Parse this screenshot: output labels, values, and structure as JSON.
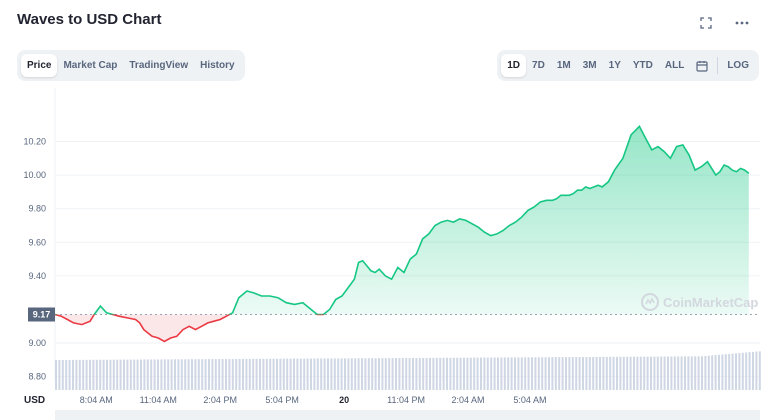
{
  "header": {
    "title": "Waves to USD Chart"
  },
  "icons": {
    "fullscreen": "fullscreen-icon",
    "more": "more-icon",
    "calendar": "calendar-icon",
    "watermark_logo": "coinmarketcap-logo-icon"
  },
  "view_tabs": [
    {
      "label": "Price",
      "active": true
    },
    {
      "label": "Market Cap",
      "active": false
    },
    {
      "label": "TradingView",
      "active": false
    },
    {
      "label": "History",
      "active": false
    }
  ],
  "range_tabs": [
    {
      "label": "1D",
      "active": true
    },
    {
      "label": "7D",
      "active": false
    },
    {
      "label": "1M",
      "active": false
    },
    {
      "label": "3M",
      "active": false
    },
    {
      "label": "1Y",
      "active": false
    },
    {
      "label": "YTD",
      "active": false
    },
    {
      "label": "ALL",
      "active": false
    }
  ],
  "log_label": "LOG",
  "watermark": "CoinMarketCap",
  "colors": {
    "up": "#16c784",
    "down": "#ea3943",
    "volume": "#cfd6e4",
    "grid": "#eff2f5",
    "reference_label_bg": "#58667e"
  },
  "chart_data": {
    "type": "area",
    "currency_label": "USD",
    "reference_price": 9.17,
    "reference_label": "9.17",
    "y_ticks": [
      "10.20",
      "10.00",
      "9.80",
      "9.60",
      "9.40",
      "9.00",
      "8.80"
    ],
    "x_ticks": [
      "8:04 AM",
      "11:04 AM",
      "2:04 PM",
      "5:04 PM",
      "20",
      "11:04 PM",
      "2:04 AM",
      "5:04 AM"
    ],
    "x_ticks_bold": [
      "20"
    ],
    "ylim": [
      8.78,
      10.34
    ],
    "grid": true,
    "x_hours": [
      0,
      0.3,
      0.6,
      0.9,
      1.3,
      1.7,
      1.9,
      2.2,
      2.5,
      2.8,
      3.1,
      3.5,
      3.9,
      4.1,
      4.3,
      4.5,
      4.7,
      5.0,
      5.3,
      5.6,
      5.9,
      6.2,
      6.5,
      6.8,
      7.1,
      7.4,
      7.7,
      8.0,
      8.3,
      8.6,
      8.9,
      9.3,
      9.6,
      10.0,
      10.4,
      10.8,
      11.2,
      11.6,
      12.0,
      12.4,
      12.7,
      13.0,
      13.3,
      13.6,
      13.9,
      14.2,
      14.5,
      14.7,
      14.9,
      15.1,
      15.3,
      15.5,
      15.7,
      16.0,
      16.3,
      16.6,
      16.9,
      17.2,
      17.5,
      17.8,
      18.1,
      18.4,
      18.7,
      19.0,
      19.3,
      19.6,
      19.9,
      20.2,
      20.5,
      20.8,
      21.1,
      21.4,
      21.7,
      22.0,
      22.3,
      22.6,
      22.9,
      23.2,
      23.5,
      23.8,
      24.1,
      24.3,
      24.5,
      24.7,
      24.9,
      25.1,
      25.3,
      25.5,
      25.7,
      25.9,
      26.1,
      26.3,
      26.5,
      26.8,
      27.1,
      27.5,
      27.9,
      28.3,
      28.6,
      28.9,
      29.2,
      29.5,
      29.8,
      30.1,
      30.4,
      30.7,
      31.0,
      31.3,
      31.6,
      31.8,
      32.0,
      32.2,
      32.4,
      32.6,
      32.8,
      33.0,
      33.2,
      33.4,
      33.6
    ],
    "prices": [
      9.17,
      9.16,
      9.14,
      9.12,
      9.11,
      9.13,
      9.17,
      9.22,
      9.18,
      9.17,
      9.16,
      9.15,
      9.14,
      9.12,
      9.08,
      9.06,
      9.04,
      9.03,
      9.01,
      9.03,
      9.04,
      9.08,
      9.1,
      9.08,
      9.1,
      9.12,
      9.13,
      9.14,
      9.16,
      9.18,
      9.27,
      9.31,
      9.3,
      9.28,
      9.28,
      9.27,
      9.24,
      9.23,
      9.24,
      9.2,
      9.17,
      9.17,
      9.2,
      9.26,
      9.28,
      9.33,
      9.38,
      9.48,
      9.49,
      9.46,
      9.43,
      9.42,
      9.44,
      9.4,
      9.38,
      9.45,
      9.42,
      9.5,
      9.53,
      9.62,
      9.65,
      9.7,
      9.72,
      9.73,
      9.72,
      9.74,
      9.73,
      9.71,
      9.69,
      9.66,
      9.64,
      9.65,
      9.67,
      9.7,
      9.72,
      9.75,
      9.79,
      9.81,
      9.84,
      9.85,
      9.85,
      9.86,
      9.88,
      9.88,
      9.88,
      9.89,
      9.91,
      9.91,
      9.93,
      9.92,
      9.93,
      9.94,
      9.93,
      9.96,
      10.03,
      10.1,
      10.24,
      10.29,
      10.22,
      10.15,
      10.17,
      10.14,
      10.1,
      10.17,
      10.18,
      10.12,
      10.03,
      10.05,
      10.08,
      10.04,
      10.0,
      10.02,
      10.06,
      10.05,
      10.03,
      10.02,
      10.04,
      10.03,
      10.01
    ]
  }
}
